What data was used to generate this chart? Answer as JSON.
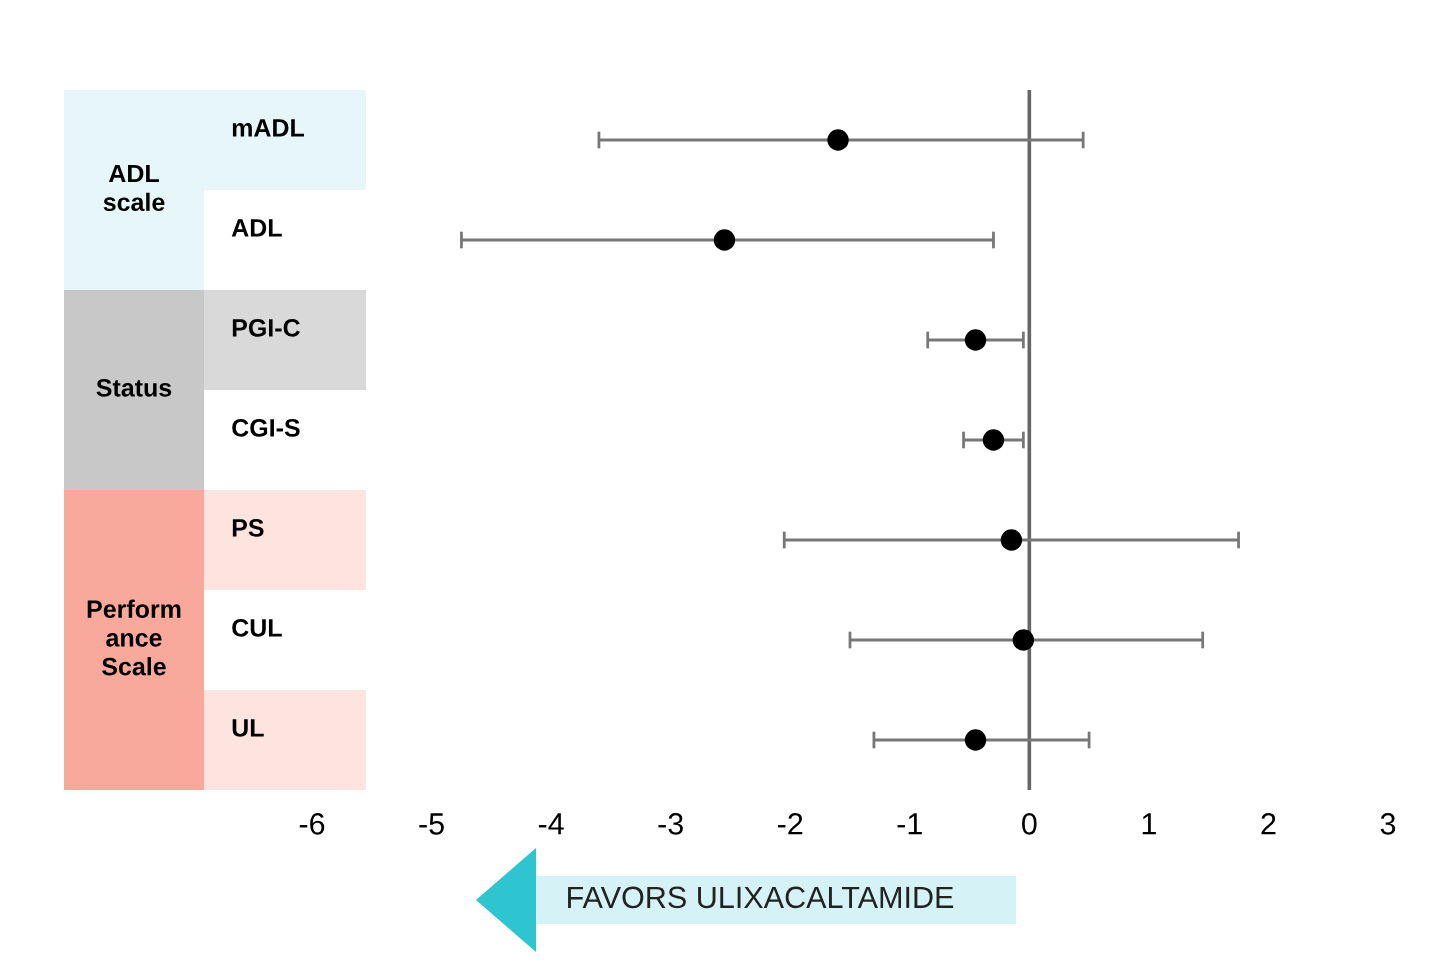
{
  "chart_data": {
    "type": "scatter",
    "orientation": "horizontal",
    "categories": [
      "mADL",
      "ADL",
      "PGI-C",
      "CGI-S",
      "PS",
      "CUL",
      "UL"
    ],
    "series": [
      {
        "color": "#000000",
        "values": [
          -1.6,
          -2.55,
          -0.45,
          -0.3,
          -0.15,
          -0.05,
          -0.45
        ],
        "errors": [
          [
            -3.6,
            0.45
          ],
          [
            -4.75,
            -0.3
          ],
          [
            -0.85,
            -0.05
          ],
          [
            -0.55,
            -0.05
          ],
          [
            -2.05,
            1.75
          ],
          [
            -1.5,
            1.45
          ],
          [
            -1.3,
            0.5
          ]
        ]
      }
    ],
    "marker": "circle",
    "grid": false,
    "xlim": [
      -6,
      3
    ],
    "xticks": [
      -6,
      -5,
      -4,
      -3,
      -2,
      -1,
      0,
      1,
      2,
      3
    ],
    "ref_lines": [
      {
        "axis": "x",
        "value": 0,
        "color": "#666666"
      }
    ],
    "annotations": [
      "ADL\nscale",
      "Status",
      "Perform\nance\nScale",
      "FAVORS ULIXACALTAMIDE"
    ]
  }
}
